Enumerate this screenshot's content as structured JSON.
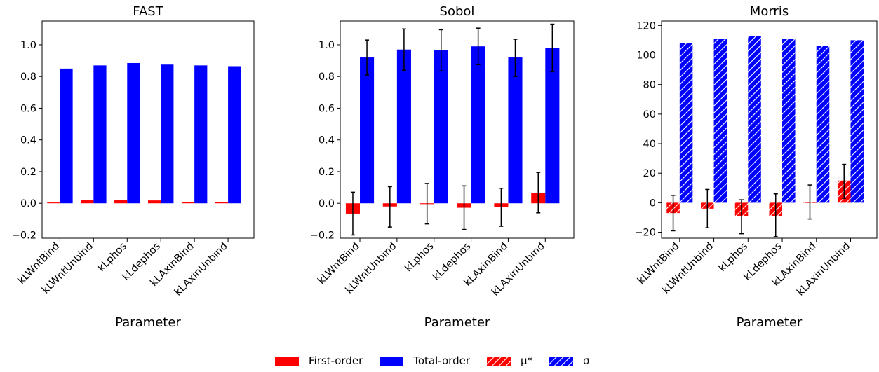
{
  "chart_data": [
    {
      "type": "bar",
      "title": "FAST",
      "xlabel": "Parameter",
      "ylabel": "",
      "categories": [
        "kLWntBind",
        "kLWntUnbind",
        "kLphos",
        "kLdephos",
        "kLAxinBind",
        "kLAxinUnbind"
      ],
      "ylim": [
        -0.22,
        1.15
      ],
      "yticks": [
        -0.2,
        0.0,
        0.2,
        0.4,
        0.6,
        0.8,
        1.0
      ],
      "grid": false,
      "series": [
        {
          "name": "First-order",
          "color": "#ff0000",
          "hatch": false,
          "values": [
            0.005,
            0.02,
            0.022,
            0.018,
            0.006,
            0.008
          ]
        },
        {
          "name": "Total-order",
          "color": "#0000ff",
          "hatch": false,
          "values": [
            0.85,
            0.87,
            0.885,
            0.875,
            0.87,
            0.865
          ]
        }
      ]
    },
    {
      "type": "bar",
      "title": "Sobol",
      "xlabel": "Parameter",
      "ylabel": "",
      "categories": [
        "kLWntBind",
        "kLWntUnbind",
        "kLphos",
        "kLdephos",
        "kLAxinBind",
        "kLAxinUnbind"
      ],
      "ylim": [
        -0.22,
        1.15
      ],
      "yticks": [
        -0.2,
        0.0,
        0.2,
        0.4,
        0.6,
        0.8,
        1.0
      ],
      "grid": false,
      "series": [
        {
          "name": "First-order",
          "color": "#ff0000",
          "hatch": false,
          "values": [
            -0.065,
            -0.02,
            -0.005,
            -0.028,
            -0.025,
            0.065
          ],
          "err_low": [
            -0.2,
            -0.15,
            -0.13,
            -0.165,
            -0.145,
            -0.06
          ],
          "err_high": [
            0.07,
            0.105,
            0.125,
            0.11,
            0.095,
            0.195
          ]
        },
        {
          "name": "Total-order",
          "color": "#0000ff",
          "hatch": false,
          "values": [
            0.92,
            0.97,
            0.965,
            0.99,
            0.92,
            0.98
          ],
          "err_low": [
            0.81,
            0.84,
            0.835,
            0.875,
            0.8,
            0.83
          ],
          "err_high": [
            1.03,
            1.1,
            1.095,
            1.105,
            1.035,
            1.13
          ]
        }
      ]
    },
    {
      "type": "bar",
      "title": "Morris",
      "xlabel": "Parameter",
      "ylabel": "",
      "categories": [
        "kLWntBind",
        "kLWntUnbind",
        "kLphos",
        "kLdephos",
        "kLAxinBind",
        "kLAxinUnbind"
      ],
      "ylim": [
        -24,
        123
      ],
      "yticks": [
        -20,
        0,
        20,
        40,
        60,
        80,
        100,
        120
      ],
      "grid": false,
      "series": [
        {
          "name": "μ*",
          "color": "#ff0000",
          "hatch": true,
          "values": [
            -7,
            -4,
            -9,
            -9,
            0,
            15
          ],
          "err_low": [
            -19,
            -17,
            -21,
            -23,
            -11,
            3
          ],
          "err_high": [
            5,
            9,
            2,
            6,
            12,
            26
          ]
        },
        {
          "name": "σ",
          "color": "#0000ff",
          "hatch": true,
          "values": [
            108,
            111,
            113,
            111,
            106,
            110
          ]
        }
      ]
    }
  ],
  "legend": {
    "placement": "bottom-center",
    "items": [
      {
        "label": "First-order",
        "color": "#ff0000",
        "hatch": false
      },
      {
        "label": "Total-order",
        "color": "#0000ff",
        "hatch": false
      },
      {
        "label": "μ*",
        "color": "#ff0000",
        "hatch": true
      },
      {
        "label": "σ",
        "color": "#0000ff",
        "hatch": true
      }
    ]
  }
}
